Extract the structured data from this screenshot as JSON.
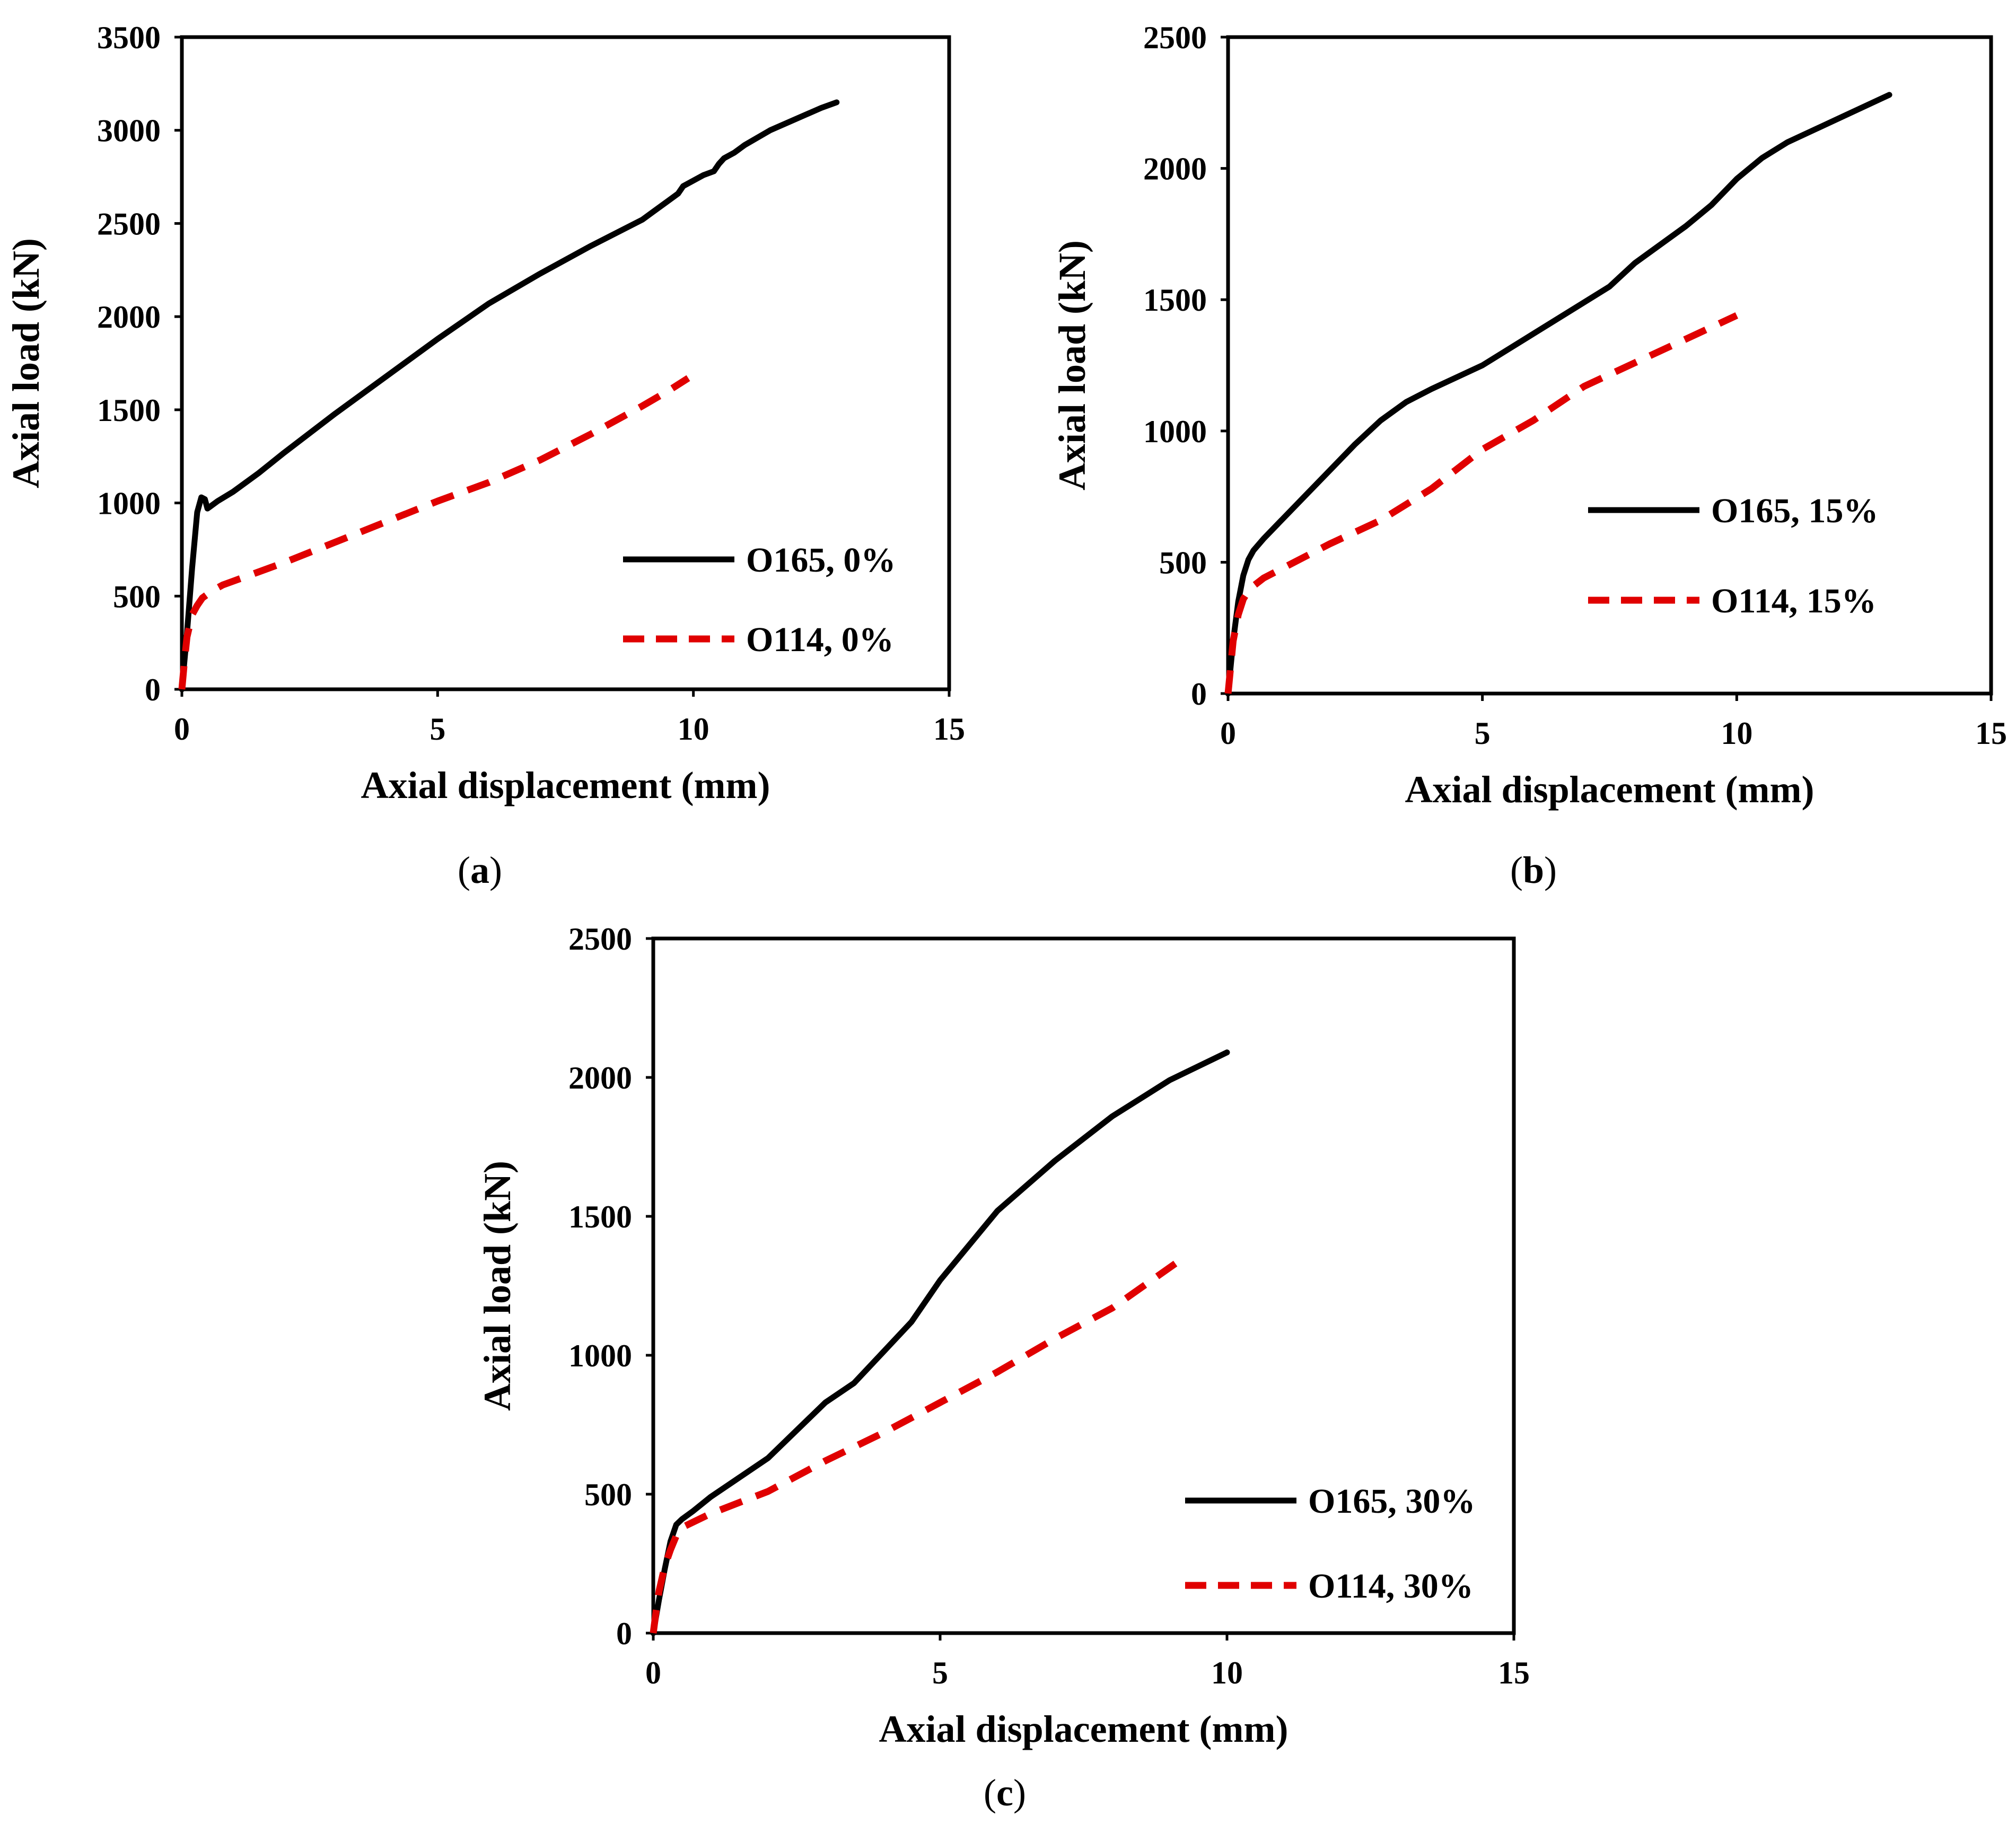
{
  "chart_data": [
    {
      "id": "a",
      "type": "line",
      "caption": "(a)",
      "caption_letter": "a",
      "xlabel": "Axial displacement (mm)",
      "ylabel": "Axial load (kN)",
      "xlim": [
        0,
        15
      ],
      "ylim": [
        0,
        3500
      ],
      "xticks": [
        0,
        5,
        10,
        15
      ],
      "yticks": [
        0,
        500,
        1000,
        1500,
        2000,
        2500,
        3000,
        3500
      ],
      "legend_position": "bottom-right",
      "series": [
        {
          "name": "O165, 0%",
          "color": "#000000",
          "style": "solid",
          "x": [
            0,
            0.1,
            0.2,
            0.3,
            0.38,
            0.45,
            0.5,
            0.55,
            0.7,
            1,
            1.5,
            2,
            3,
            4,
            5,
            6,
            7,
            8,
            9,
            9.2,
            9.5,
            9.7,
            9.8,
            10,
            10.2,
            10.4,
            10.5,
            10.6,
            10.8,
            11,
            11.5,
            12,
            12.5,
            12.8
          ],
          "y": [
            0,
            300,
            650,
            950,
            1030,
            1020,
            970,
            980,
            1010,
            1060,
            1160,
            1270,
            1480,
            1680,
            1880,
            2070,
            2230,
            2380,
            2520,
            2560,
            2620,
            2660,
            2700,
            2730,
            2760,
            2780,
            2820,
            2850,
            2880,
            2920,
            3000,
            3060,
            3120,
            3150
          ]
        },
        {
          "name": "O114, 0%",
          "color": "#e00000",
          "style": "dashed",
          "x": [
            0,
            0.05,
            0.1,
            0.2,
            0.3,
            0.4,
            0.6,
            0.8,
            1,
            1.5,
            2,
            3,
            4,
            5,
            6,
            7,
            8,
            9,
            9.5,
            9.9
          ],
          "y": [
            0,
            150,
            280,
            400,
            450,
            490,
            530,
            560,
            580,
            630,
            680,
            790,
            900,
            1010,
            1110,
            1230,
            1370,
            1520,
            1600,
            1670
          ]
        }
      ]
    },
    {
      "id": "b",
      "type": "line",
      "caption": "(b)",
      "caption_letter": "b",
      "xlabel": "Axial displacement (mm)",
      "ylabel": "Axial load (kN)",
      "xlim": [
        0,
        15
      ],
      "ylim": [
        0,
        2500
      ],
      "xticks": [
        0,
        5,
        10,
        15
      ],
      "yticks": [
        0,
        500,
        1000,
        1500,
        2000,
        2500
      ],
      "legend_position": "center-right",
      "series": [
        {
          "name": "O165, 15%",
          "color": "#000000",
          "style": "solid",
          "x": [
            0,
            0.1,
            0.2,
            0.3,
            0.4,
            0.5,
            0.7,
            1,
            1.5,
            2,
            2.5,
            3,
            3.5,
            4,
            5,
            6,
            7,
            7.5,
            8,
            9,
            9.5,
            10,
            10.5,
            11,
            12,
            13
          ],
          "y": [
            0,
            200,
            350,
            450,
            510,
            545,
            590,
            650,
            750,
            850,
            950,
            1040,
            1110,
            1160,
            1250,
            1370,
            1490,
            1550,
            1640,
            1780,
            1860,
            1960,
            2040,
            2100,
            2190,
            2280
          ]
        },
        {
          "name": "O114, 15%",
          "color": "#e00000",
          "style": "dashed",
          "x": [
            0,
            0.05,
            0.1,
            0.2,
            0.3,
            0.4,
            0.5,
            0.7,
            1,
            1.5,
            2,
            3,
            4,
            5,
            6,
            7,
            8,
            9,
            10
          ],
          "y": [
            0,
            100,
            200,
            300,
            360,
            390,
            410,
            440,
            470,
            520,
            570,
            660,
            780,
            930,
            1040,
            1170,
            1260,
            1350,
            1440
          ]
        }
      ]
    },
    {
      "id": "c",
      "type": "line",
      "caption": "(c)",
      "caption_letter": "c",
      "xlabel": "Axial displacement (mm)",
      "ylabel": "Axial load (kN)",
      "xlim": [
        0,
        15
      ],
      "ylim": [
        0,
        2500
      ],
      "xticks": [
        0,
        5,
        10,
        15
      ],
      "yticks": [
        0,
        500,
        1000,
        1500,
        2000,
        2500
      ],
      "legend_position": "bottom-right",
      "series": [
        {
          "name": "O165, 30%",
          "color": "#000000",
          "style": "solid",
          "x": [
            0,
            0.1,
            0.2,
            0.3,
            0.4,
            0.5,
            0.7,
            1,
            1.5,
            2,
            2.5,
            3,
            3.5,
            4,
            4.5,
            5,
            6,
            7,
            8,
            9,
            10
          ],
          "y": [
            0,
            120,
            230,
            330,
            390,
            410,
            440,
            490,
            560,
            630,
            730,
            830,
            900,
            1010,
            1120,
            1270,
            1520,
            1700,
            1860,
            1990,
            2090
          ]
        },
        {
          "name": "O114, 30%",
          "color": "#e00000",
          "style": "dashed",
          "x": [
            0,
            0.05,
            0.1,
            0.2,
            0.3,
            0.4,
            0.5,
            0.7,
            1,
            1.5,
            2,
            3,
            4,
            5,
            6,
            7,
            8,
            9.1
          ],
          "y": [
            0,
            80,
            150,
            240,
            300,
            350,
            380,
            400,
            430,
            470,
            510,
            620,
            720,
            830,
            940,
            1060,
            1170,
            1330
          ]
        }
      ]
    }
  ]
}
